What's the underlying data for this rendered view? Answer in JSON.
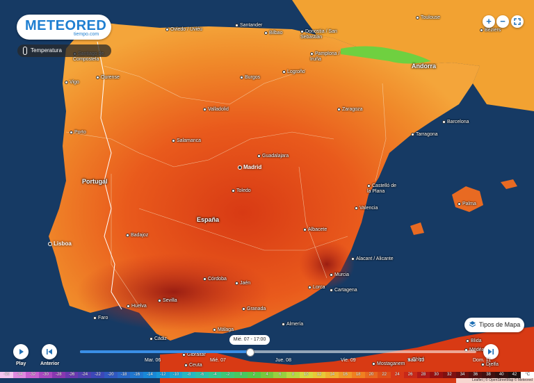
{
  "brand": {
    "name": "METEORED",
    "sub": "tiempo.com"
  },
  "layer": {
    "label": "Temperatura",
    "icon": "thermometer-icon"
  },
  "zoom": {
    "in": "+",
    "out": "−",
    "fullscreen_icon": "expand-icon"
  },
  "map_types_button": {
    "label": "Tipos de Mapa",
    "icon": "layers-icon"
  },
  "countries": {
    "portugal": "Portugal",
    "espana": "España",
    "andorra": "Andorra"
  },
  "capitals": {
    "madrid": "Madrid",
    "lisboa": "Lisboa"
  },
  "cities": [
    {
      "key": "oviedo",
      "name": "Oviedo / Uviéu"
    },
    {
      "key": "santander",
      "name": "Santander"
    },
    {
      "key": "bilbao",
      "name": "Bilbao"
    },
    {
      "key": "donostia",
      "name": "Donostia / San Sebastián"
    },
    {
      "key": "toulouse",
      "name": "Toulouse"
    },
    {
      "key": "beziers",
      "name": "Béziers"
    },
    {
      "key": "santiago",
      "name": "Santiago de Compostela"
    },
    {
      "key": "vigo",
      "name": "Vigo"
    },
    {
      "key": "ourense",
      "name": "Ourense"
    },
    {
      "key": "pamplona",
      "name": "Pamplona / Iruña"
    },
    {
      "key": "logrono",
      "name": "Logroño"
    },
    {
      "key": "burgos",
      "name": "Burgos"
    },
    {
      "key": "valladolid",
      "name": "Valladolid"
    },
    {
      "key": "zaragoza",
      "name": "Zaragoza"
    },
    {
      "key": "barcelona",
      "name": "Barcelona"
    },
    {
      "key": "tarragona",
      "name": "Tarragona"
    },
    {
      "key": "porto",
      "name": "Porto"
    },
    {
      "key": "salamanca",
      "name": "Salamanca"
    },
    {
      "key": "guadalajara",
      "name": "Guadalajara"
    },
    {
      "key": "toledo",
      "name": "Toledo"
    },
    {
      "key": "castellon",
      "name": "Castelló de la Plana"
    },
    {
      "key": "palma",
      "name": "Palma"
    },
    {
      "key": "valencia",
      "name": "Valencia"
    },
    {
      "key": "badajoz",
      "name": "Badajoz"
    },
    {
      "key": "albacete",
      "name": "Albacete"
    },
    {
      "key": "alacant",
      "name": "Alacant / Alicante"
    },
    {
      "key": "cordoba",
      "name": "Córdoba"
    },
    {
      "key": "jaen",
      "name": "Jaén"
    },
    {
      "key": "murcia",
      "name": "Murcia"
    },
    {
      "key": "lorca",
      "name": "Lorca"
    },
    {
      "key": "cartagena",
      "name": "Cartagena"
    },
    {
      "key": "huelva",
      "name": "Huelva"
    },
    {
      "key": "sevilla",
      "name": "Sevilla"
    },
    {
      "key": "granada",
      "name": "Granada"
    },
    {
      "key": "faro",
      "name": "Faro"
    },
    {
      "key": "almeria",
      "name": "Almería"
    },
    {
      "key": "malaga",
      "name": "Málaga"
    },
    {
      "key": "cadiz",
      "name": "Cádiz"
    },
    {
      "key": "gibraltar",
      "name": "Gibraltar"
    },
    {
      "key": "ceuta",
      "name": "Ceuta"
    },
    {
      "key": "blida",
      "name": "Blida"
    },
    {
      "key": "medea",
      "name": "Médéa"
    },
    {
      "key": "mostaganem",
      "name": "Mostaganem"
    },
    {
      "key": "chlef",
      "name": "Chlef"
    },
    {
      "key": "djelfa",
      "name": "Djelfa"
    }
  ],
  "playback": {
    "play_label": "Play",
    "prev_label": "Anterior",
    "current_time": "Mié. 07 - 17:00",
    "days": [
      "Mar. 06",
      "Mié. 07",
      "Jue. 08",
      "Vie. 09",
      "Sáb. 10",
      "Dom. 11"
    ],
    "progress": 0.43
  },
  "legend": {
    "unit": "°C",
    "values": [
      "-50",
      "-34",
      "-32",
      "-30",
      "-28",
      "-26",
      "-24",
      "-22",
      "-20",
      "-18",
      "-16",
      "-14",
      "-12",
      "-10",
      "-8",
      "-6",
      "-4",
      "-2",
      "0",
      "2",
      "4",
      "6",
      "8",
      "10",
      "12",
      "14",
      "16",
      "18",
      "20",
      "22",
      "24",
      "26",
      "28",
      "30",
      "32",
      "34",
      "36",
      "38",
      "40",
      "42"
    ],
    "colors": [
      "#f5c6f0",
      "#e08ae0",
      "#c860d0",
      "#a848c0",
      "#8838b0",
      "#6a38b0",
      "#5040b0",
      "#3c48b8",
      "#3058c0",
      "#2868c8",
      "#2078d0",
      "#1888d8",
      "#1898d8",
      "#20a8d0",
      "#28b8c0",
      "#30c0a8",
      "#38c890",
      "#40c878",
      "#48c860",
      "#58c848",
      "#78c840",
      "#98d040",
      "#b8d840",
      "#d8d840",
      "#e8c838",
      "#f0b030",
      "#f09828",
      "#f08020",
      "#e86820",
      "#e05018",
      "#d83818",
      "#c82818",
      "#b01818",
      "#981010",
      "#801010",
      "#681010",
      "#501010",
      "#401010",
      "#301010",
      "#201010"
    ]
  },
  "attribution": "Leaflet | © OpenStreetMap © Meteored"
}
